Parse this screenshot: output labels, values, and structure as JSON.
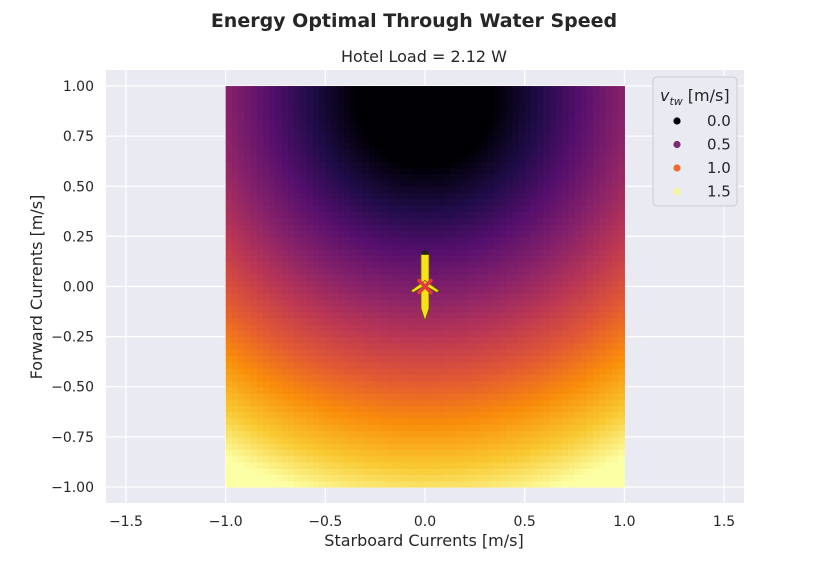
{
  "chart_data": {
    "type": "heatmap",
    "title": "Energy Optimal Through Water Speed",
    "subtitle": "Hotel Load = 2.12 W",
    "xlabel": "Starboard Currents [m/s]",
    "ylabel": "Forward Currents [m/s]",
    "xlim": [
      -1.6,
      1.6
    ],
    "ylim": [
      -1.08,
      1.08
    ],
    "xticks": [
      -1.5,
      -1.0,
      -0.5,
      0.0,
      0.5,
      1.0,
      1.5
    ],
    "xtick_labels": [
      "−1.5",
      "−1.0",
      "−0.5",
      "0.0",
      "0.5",
      "1.0",
      "1.5"
    ],
    "yticks": [
      1.0,
      0.75,
      0.5,
      0.25,
      0.0,
      -0.25,
      -0.5,
      -0.75,
      -1.0
    ],
    "ytick_labels": [
      "1.00",
      "0.75",
      "0.50",
      "0.25",
      "0.00",
      "−0.25",
      "−0.50",
      "−0.75",
      "−1.00"
    ],
    "grid": true,
    "colormap": "inferno",
    "field_extent": {
      "x": [
        -1.0,
        1.0
      ],
      "y": [
        -1.0,
        1.0
      ]
    },
    "value_range": [
      0.0,
      1.5
    ],
    "marker": {
      "x": 0.0,
      "y": 0.0,
      "color": "#e03a3a",
      "shape": "x"
    },
    "vehicle_icon": "glider-icon",
    "legend": {
      "title_main": "v",
      "title_sub": "tw",
      "title_unit": "[m/s]",
      "placement": "top-right",
      "entries": [
        {
          "label": "0.0",
          "color": "#000004"
        },
        {
          "label": "0.5",
          "color": "#7b2a73"
        },
        {
          "label": "1.0",
          "color": "#f1692c"
        },
        {
          "label": "1.5",
          "color": "#f8f59a"
        }
      ]
    }
  },
  "colors": {
    "axes_bg": "#eaeaf2",
    "grid": "#ffffff",
    "text": "#262626",
    "vehicle_body": "#f5e31a",
    "vehicle_outline": "#6b5a00"
  }
}
